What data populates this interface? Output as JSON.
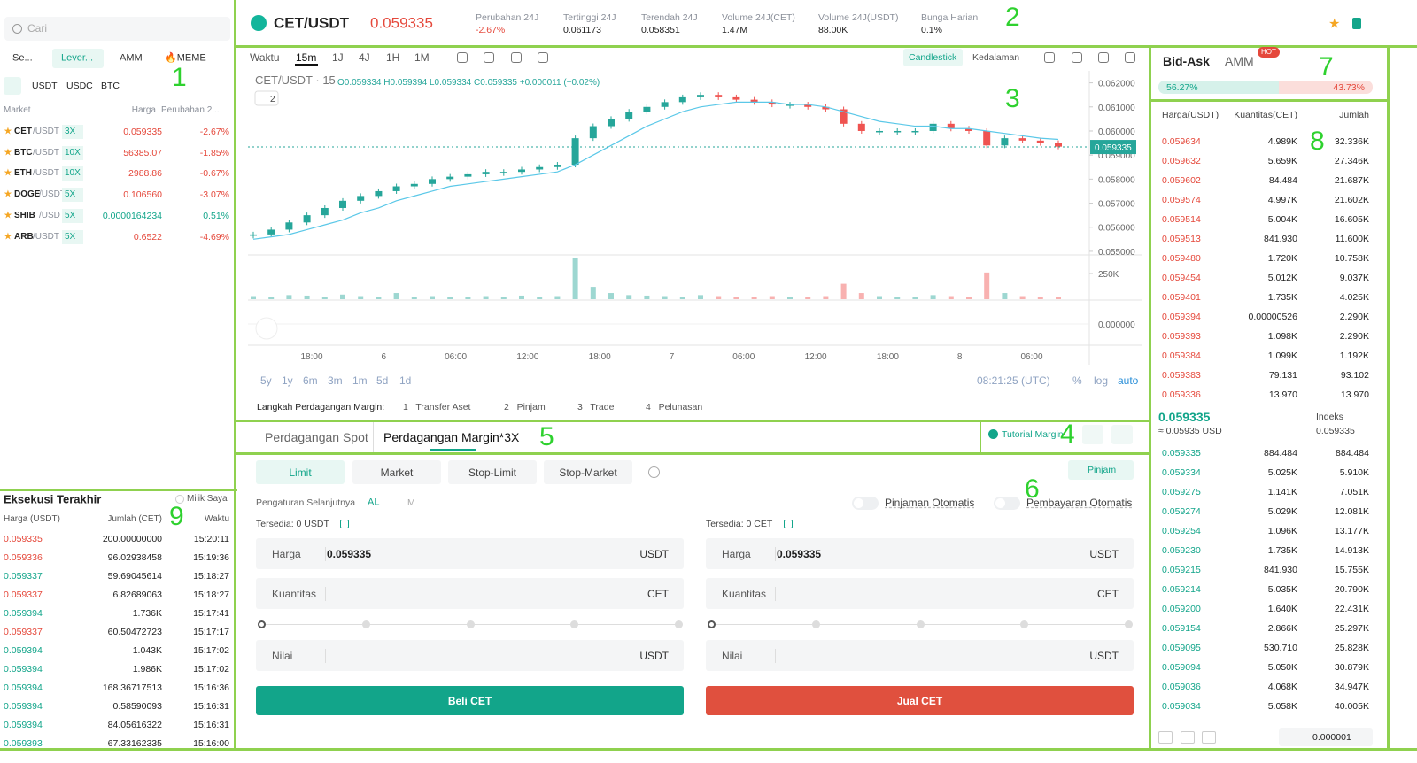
{
  "annotations": [
    "1",
    "2",
    "3",
    "4",
    "5",
    "6",
    "7",
    "8",
    "9"
  ],
  "sidebar": {
    "search": "Cari",
    "tabs": [
      "Se...",
      "Lever...",
      "AMM",
      "🔥MEME"
    ],
    "quotes": [
      "USDT",
      "USDC",
      "BTC"
    ],
    "columns": [
      "Market",
      "Harga",
      "Perubahan 2..."
    ],
    "markets": [
      {
        "base": "CET",
        "quote": "/USDT",
        "leverage": "3X",
        "price": "0.059335",
        "change": "-2.67%"
      },
      {
        "base": "BTC",
        "quote": "/USDT",
        "leverage": "10X",
        "price": "56385.07",
        "change": "-1.85%"
      },
      {
        "base": "ETH",
        "quote": "/USDT",
        "leverage": "10X",
        "price": "2988.86",
        "change": "-0.67%"
      },
      {
        "base": "DOGE",
        "quote": "/USDT",
        "leverage": "5X",
        "price": "0.106560",
        "change": "-3.07%"
      },
      {
        "base": "SHIB",
        "quote": "/USDT",
        "leverage": "5X",
        "price": "0.0000164234",
        "change": "0.51%"
      },
      {
        "base": "ARB",
        "quote": "/USDT",
        "leverage": "5X",
        "price": "0.6522",
        "change": "-4.69%"
      }
    ]
  },
  "trades": {
    "title": "Eksekusi Terakhir",
    "mine": "Milik Saya",
    "columns": [
      "Harga (USDT)",
      "Jumlah (CET)",
      "Waktu"
    ],
    "rows": [
      {
        "price": "0.059335",
        "amount": "200.00000000",
        "time": "15:20:11",
        "color": "#e5483b"
      },
      {
        "price": "0.059336",
        "amount": "96.02938458",
        "time": "15:19:36",
        "color": "#e5483b"
      },
      {
        "price": "0.059337",
        "amount": "59.69045614",
        "time": "15:18:27",
        "color": "#12a58a"
      },
      {
        "price": "0.059337",
        "amount": "6.82689063",
        "time": "15:18:27",
        "color": "#e5483b"
      },
      {
        "price": "0.059394",
        "amount": "1.736K",
        "time": "15:17:41",
        "color": "#12a58a"
      },
      {
        "price": "0.059337",
        "amount": "60.50472723",
        "time": "15:17:17",
        "color": "#e5483b"
      },
      {
        "price": "0.059394",
        "amount": "1.043K",
        "time": "15:17:02",
        "color": "#12a58a"
      },
      {
        "price": "0.059394",
        "amount": "1.986K",
        "time": "15:17:02",
        "color": "#12a58a"
      },
      {
        "price": "0.059394",
        "amount": "168.36717513",
        "time": "15:16:36",
        "color": "#12a58a"
      },
      {
        "price": "0.059394",
        "amount": "0.58590093",
        "time": "15:16:31",
        "color": "#12a58a"
      },
      {
        "price": "0.059394",
        "amount": "84.05616322",
        "time": "15:16:31",
        "color": "#12a58a"
      },
      {
        "price": "0.059393",
        "amount": "67.33162335",
        "time": "15:16:00",
        "color": "#12a58a"
      }
    ]
  },
  "header": {
    "pair": "CET/USDT",
    "price": "0.059335",
    "stats": [
      {
        "label": "Perubahan 24J",
        "value": "-2.67%"
      },
      {
        "label": "Tertinggi 24J",
        "value": "0.061173"
      },
      {
        "label": "Terendah 24J",
        "value": "0.058351"
      },
      {
        "label": "Volume 24J(CET)",
        "value": "1.47M"
      },
      {
        "label": "Volume 24J(USDT)",
        "value": "88.00K"
      },
      {
        "label": "Bunga Harian",
        "value": "0.1%"
      }
    ]
  },
  "toolbar": {
    "intervals": [
      "Waktu",
      "15m",
      "1J",
      "4J",
      "1H",
      "1M"
    ],
    "views": [
      "Candlestick",
      "Kedalaman"
    ]
  },
  "chart_data": {
    "type": "candlestick",
    "title": "CET/USDT · 15",
    "subtitle": "O0.059334 H0.059394 L0.059334 C0.059335 +0.000011 (+0.02%)",
    "indicators": "2",
    "closes": [
      0.0557,
      0.0559,
      0.0562,
      0.0565,
      0.0568,
      0.0571,
      0.0573,
      0.0575,
      0.0577,
      0.0578,
      0.058,
      0.0581,
      0.0582,
      0.0583,
      0.0583,
      0.0584,
      0.0585,
      0.0586,
      0.0597,
      0.0602,
      0.0605,
      0.0608,
      0.061,
      0.0612,
      0.0614,
      0.0615,
      0.0614,
      0.0613,
      0.0612,
      0.0611,
      0.0611,
      0.061,
      0.0609,
      0.0603,
      0.06,
      0.06,
      0.06,
      0.06,
      0.0603,
      0.0601,
      0.06,
      0.0594,
      0.0597,
      0.0596,
      0.0595,
      0.05935
    ],
    "ma": [
      0.0555,
      0.0556,
      0.0557,
      0.0559,
      0.0561,
      0.0563,
      0.0566,
      0.0568,
      0.0571,
      0.0573,
      0.0575,
      0.0577,
      0.0578,
      0.0579,
      0.058,
      0.0581,
      0.0582,
      0.0583,
      0.0586,
      0.059,
      0.0594,
      0.0598,
      0.0602,
      0.0605,
      0.0608,
      0.061,
      0.0611,
      0.0612,
      0.0612,
      0.0612,
      0.0611,
      0.0611,
      0.061,
      0.0608,
      0.0606,
      0.0604,
      0.0603,
      0.0602,
      0.0602,
      0.0601,
      0.0601,
      0.06,
      0.0599,
      0.0598,
      0.0597,
      0.05965
    ],
    "volume": [
      30000,
      25000,
      40000,
      35000,
      20000,
      45000,
      30000,
      25000,
      60000,
      20000,
      30000,
      25000,
      20000,
      30000,
      25000,
      35000,
      20000,
      30000,
      400000,
      120000,
      60000,
      40000,
      35000,
      30000,
      25000,
      40000,
      30000,
      20000,
      25000,
      30000,
      20000,
      25000,
      30000,
      150000,
      60000,
      30000,
      25000,
      20000,
      40000,
      30000,
      25000,
      260000,
      60000,
      30000,
      25000,
      20000
    ],
    "ylim": [
      0.05485,
      0.0625
    ],
    "yticks": [
      {
        "value": 0.062,
        "label": "0.062000"
      },
      {
        "value": 0.061,
        "label": "0.061000"
      },
      {
        "value": 0.06,
        "label": "0.060000"
      },
      {
        "value": 0.059,
        "label": "0.059000"
      },
      {
        "value": 0.058,
        "label": "0.058000"
      },
      {
        "value": 0.057,
        "label": "0.057000"
      },
      {
        "value": 0.056,
        "label": "0.056000"
      },
      {
        "value": 0.055,
        "label": "0.055000"
      }
    ],
    "volume_ylim": [
      0,
      414000
    ],
    "volume_ticks": [
      {
        "value": 250000,
        "label": "250K"
      }
    ],
    "macd_ticks": [
      {
        "value": 0,
        "label": "0.000000"
      }
    ],
    "last_price": {
      "value": 0.059335,
      "label": "0.059335"
    },
    "x_labels": [
      "18:00",
      "6",
      "06:00",
      "12:00",
      "18:00",
      "7",
      "06:00",
      "12:00",
      "18:00",
      "8",
      "06:00"
    ],
    "colors": {
      "up": "#26a69a",
      "down": "#ef5350",
      "ma": "#5bc8e8"
    }
  },
  "chart_ui": {
    "ranges": [
      "5y",
      "1y",
      "6m",
      "3m",
      "1m",
      "5d",
      "1d"
    ],
    "clock": "08:21:25 (UTC)",
    "scale": [
      "%",
      "log",
      "auto"
    ],
    "steps_title": "Langkah Perdagangan Margin:",
    "steps": [
      "1   Transfer Aset",
      "2   Pinjam",
      "3   Trade",
      "4   Pelunasan"
    ]
  },
  "order": {
    "tabs": [
      "Perdagangan Spot",
      "Perdagangan Margin*3X"
    ],
    "tutorial": "Tutorial Margin",
    "types": [
      "Limit",
      "Market",
      "Stop-Limit",
      "Stop-Market"
    ],
    "borrow": "Pinjam",
    "settings": "Pengaturan Selanjutnya",
    "al": "AL",
    "m": "M",
    "auto": [
      "Pinjaman Otomatis",
      "Pembayaran Otomatis"
    ],
    "buy": {
      "available": "Tersedia: 0 USDT",
      "price_label": "Harga",
      "price": "0.059335",
      "price_unit": "USDT",
      "qty_label": "Kuantitas",
      "qty_unit": "CET",
      "value_label": "Nilai",
      "value_unit": "USDT",
      "button": "Beli CET"
    },
    "sell": {
      "available": "Tersedia: 0 CET",
      "price_label": "Harga",
      "price": "0.059335",
      "price_unit": "USDT",
      "qty_label": "Kuantitas",
      "qty_unit": "CET",
      "value_label": "Nilai",
      "value_unit": "USDT",
      "button": "Jual CET"
    }
  },
  "book": {
    "tabs": [
      "Bid-Ask",
      "AMM"
    ],
    "hot": "HOT",
    "bid_ratio": "56.27%",
    "ask_ratio": "43.73%",
    "columns": [
      "Harga(USDT)",
      "Kuantitas(CET)",
      "Jumlah"
    ],
    "asks": [
      [
        "0.059634",
        "4.989K",
        "32.336K"
      ],
      [
        "0.059632",
        "5.659K",
        "27.346K"
      ],
      [
        "0.059602",
        "84.484",
        "21.687K"
      ],
      [
        "0.059574",
        "4.997K",
        "21.602K"
      ],
      [
        "0.059514",
        "5.004K",
        "16.605K"
      ],
      [
        "0.059513",
        "841.930",
        "11.600K"
      ],
      [
        "0.059480",
        "1.720K",
        "10.758K"
      ],
      [
        "0.059454",
        "5.012K",
        "9.037K"
      ],
      [
        "0.059401",
        "1.735K",
        "4.025K"
      ],
      [
        "0.059394",
        "0.00000526",
        "2.290K"
      ],
      [
        "0.059393",
        "1.098K",
        "2.290K"
      ],
      [
        "0.059384",
        "1.099K",
        "1.192K"
      ],
      [
        "0.059383",
        "79.131",
        "93.102"
      ],
      [
        "0.059336",
        "13.970",
        "13.970"
      ]
    ],
    "last": "0.059335",
    "last_usd": "≈ 0.05935 USD",
    "index_label": "Indeks",
    "index": "0.059335",
    "bids": [
      [
        "0.059335",
        "884.484",
        "884.484"
      ],
      [
        "0.059334",
        "5.025K",
        "5.910K"
      ],
      [
        "0.059275",
        "1.141K",
        "7.051K"
      ],
      [
        "0.059274",
        "5.029K",
        "12.081K"
      ],
      [
        "0.059254",
        "1.096K",
        "13.177K"
      ],
      [
        "0.059230",
        "1.735K",
        "14.913K"
      ],
      [
        "0.059215",
        "841.930",
        "15.755K"
      ],
      [
        "0.059214",
        "5.035K",
        "20.790K"
      ],
      [
        "0.059200",
        "1.640K",
        "22.431K"
      ],
      [
        "0.059154",
        "2.866K",
        "25.297K"
      ],
      [
        "0.059095",
        "530.710",
        "25.828K"
      ],
      [
        "0.059094",
        "5.050K",
        "30.879K"
      ],
      [
        "0.059036",
        "4.068K",
        "34.947K"
      ],
      [
        "0.059034",
        "5.058K",
        "40.005K"
      ]
    ],
    "precision": "0.000001"
  }
}
